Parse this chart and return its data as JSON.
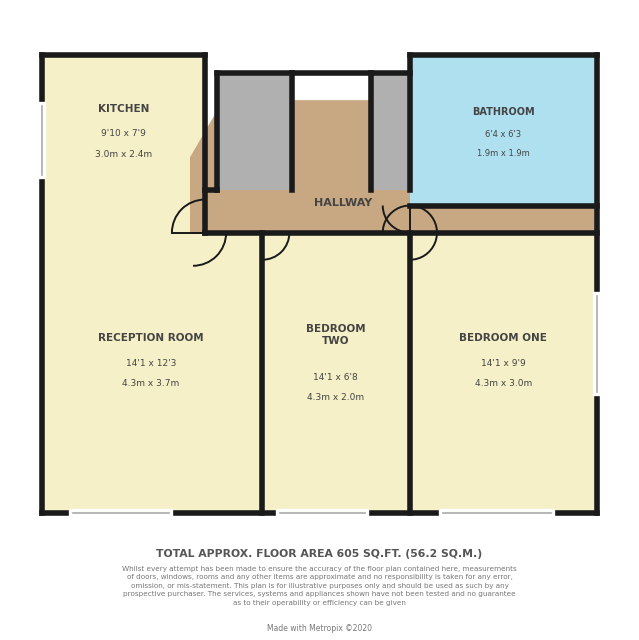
{
  "wall_color": "#1a1a1a",
  "wall_lw": 4.0,
  "kitchen_color": "#f5f0c8",
  "hallway_color": "#c8a882",
  "bathroom_color": "#aee0f0",
  "room_color": "#f5f0c8",
  "gray_color": "#b0b0b0",
  "text_color": "#444444",
  "title_text": "TOTAL APPROX. FLOOR AREA 605 SQ.FT. (56.2 SQ.M.)",
  "disclaimer": "Whilst every attempt has been made to ensure the accuracy of the floor plan contained here, measurements\nof doors, windows, rooms and any other items are approximate and no responsibility is taken for any error,\nomission, or mis-statement. This plan is for illustrative purposes only and should be used as such by any\nprospective purchaser. The services, systems and appliances shown have not been tested and no guarantee\nas to their operability or efficiency can be given",
  "credit": "Made with Metropix ©2020",
  "kitchen_label": "KITCHEN",
  "kitchen_dim1": "9'10 x 7'9",
  "kitchen_dim2": "3.0m x 2.4m",
  "hallway_label": "HALLWAY",
  "bathroom_label": "BATHROOM",
  "bathroom_dim1": "6'4 x 6'3",
  "bathroom_dim2": "1.9m x 1.9m",
  "reception_label": "RECEPTION ROOM",
  "reception_dim1": "14'1 x 12'3",
  "reception_dim2": "4.3m x 3.7m",
  "bed2_label": "BEDROOM\nTWO",
  "bed2_dim1": "14'1 x 6'8",
  "bed2_dim2": "4.3m x 2.0m",
  "bed1_label": "BEDROOM ONE",
  "bed1_dim1": "14'1 x 9'9",
  "bed1_dim2": "4.3m x 3.0m"
}
